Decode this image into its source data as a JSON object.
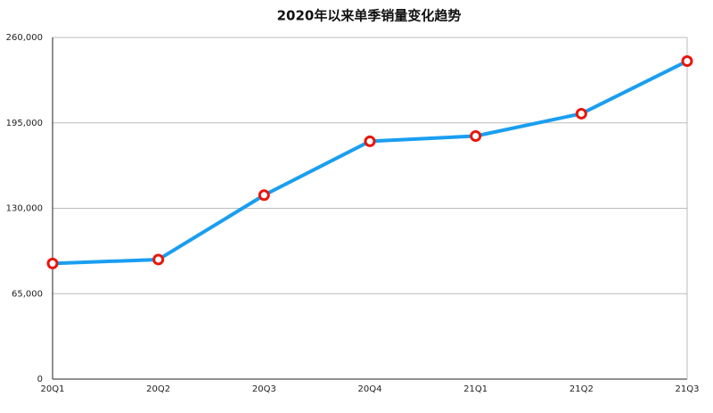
{
  "chart_data": {
    "type": "line",
    "title": "2020年以来单季销量变化趋势",
    "categories": [
      "20Q1",
      "20Q2",
      "20Q3",
      "20Q4",
      "21Q1",
      "21Q2",
      "21Q3"
    ],
    "values": [
      88000,
      91000,
      140000,
      181000,
      185000,
      202000,
      242000
    ],
    "color": "#1a9ef0",
    "marker_color": "#e8160c",
    "ylim": [
      0,
      260000
    ],
    "yticks": [
      0,
      {
        "value": 65000,
        "label": "65,000"
      },
      {
        "value": 130000,
        "label": "130,000"
      },
      {
        "value": 195000,
        "label": "195,000"
      },
      {
        "value": 260000,
        "label": "260,000"
      }
    ],
    "grid": true
  }
}
